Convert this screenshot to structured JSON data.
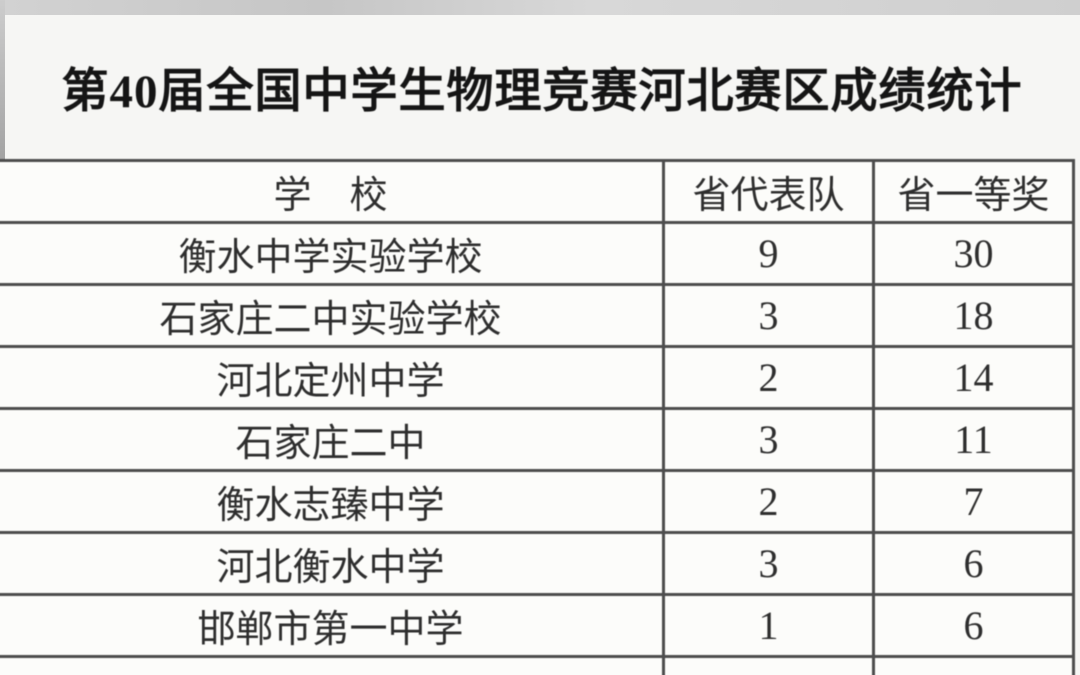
{
  "page": {
    "title": "第40届全国中学生物理竞赛河北赛区成绩统计"
  },
  "table": {
    "columns": [
      "学　校",
      "省代表队",
      "省一等奖"
    ],
    "rows": [
      {
        "school": "衡水中学实验学校",
        "team": "9",
        "first_prize": "30"
      },
      {
        "school": "石家庄二中实验学校",
        "team": "3",
        "first_prize": "18"
      },
      {
        "school": "河北定州中学",
        "team": "2",
        "first_prize": "14"
      },
      {
        "school": "石家庄二中",
        "team": "3",
        "first_prize": "11"
      },
      {
        "school": "衡水志臻中学",
        "team": "2",
        "first_prize": "7"
      },
      {
        "school": "河北衡水中学",
        "team": "3",
        "first_prize": "6"
      },
      {
        "school": "邯郸市第一中学",
        "team": "1",
        "first_prize": "6"
      }
    ]
  },
  "colors": {
    "background": "#f6f6f4",
    "cell_background": "#fcfcfa",
    "table_border": "#4d4d4d",
    "title_text": "#151515",
    "cell_text": "#2e2e2e",
    "letterbox_band": "#cccccc"
  }
}
